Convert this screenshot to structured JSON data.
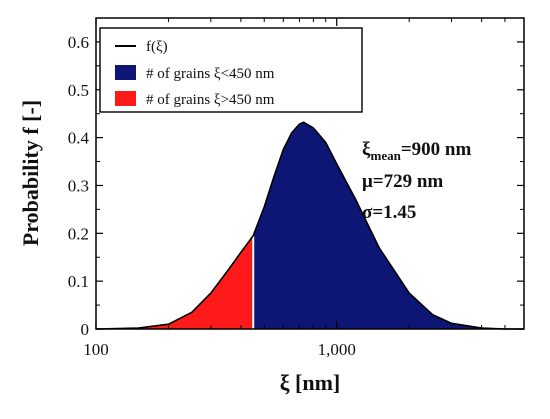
{
  "chart_data": {
    "type": "area",
    "title": "",
    "xlabel": "ξ [nm]",
    "ylabel": "Probability f [-]",
    "x_scale": "log",
    "xlim": [
      100,
      6000
    ],
    "ylim": [
      0,
      0.65
    ],
    "x_ticks": [
      100,
      1000
    ],
    "x_tick_labels": [
      "100",
      "1,000"
    ],
    "y_ticks": [
      0,
      0.1,
      0.2,
      0.3,
      0.4,
      0.5,
      0.6
    ],
    "y_tick_labels": [
      "0",
      "0.1",
      "0.2",
      "0.3",
      "0.4",
      "0.5",
      "0.6"
    ],
    "grid": false,
    "legend_position": "top-left",
    "split_x": 450,
    "series": [
      {
        "name": "f(ξ)",
        "color": "#000000",
        "x": [
          100,
          150,
          200,
          250,
          300,
          350,
          400,
          450,
          500,
          550,
          600,
          650,
          700,
          729,
          800,
          900,
          1000,
          1200,
          1500,
          2000,
          2500,
          3000,
          4000,
          5000,
          6000
        ],
        "y": [
          0.0,
          0.002,
          0.01,
          0.035,
          0.075,
          0.12,
          0.16,
          0.195,
          0.255,
          0.32,
          0.375,
          0.41,
          0.428,
          0.432,
          0.42,
          0.39,
          0.345,
          0.27,
          0.17,
          0.075,
          0.03,
          0.012,
          0.002,
          0.0,
          0.0
        ]
      },
      {
        "name": "# of grains ξ<450 nm",
        "color": "#0d1575"
      },
      {
        "name": "# of grains ξ>450 nm",
        "color": "#ff1a1a"
      }
    ],
    "annotations": {
      "xi_mean_symbol": "ξ",
      "xi_mean_subscript": "mean",
      "xi_mean_value": "=900 nm",
      "mu": "μ=729 nm",
      "sigma": "σ=1.45"
    }
  }
}
